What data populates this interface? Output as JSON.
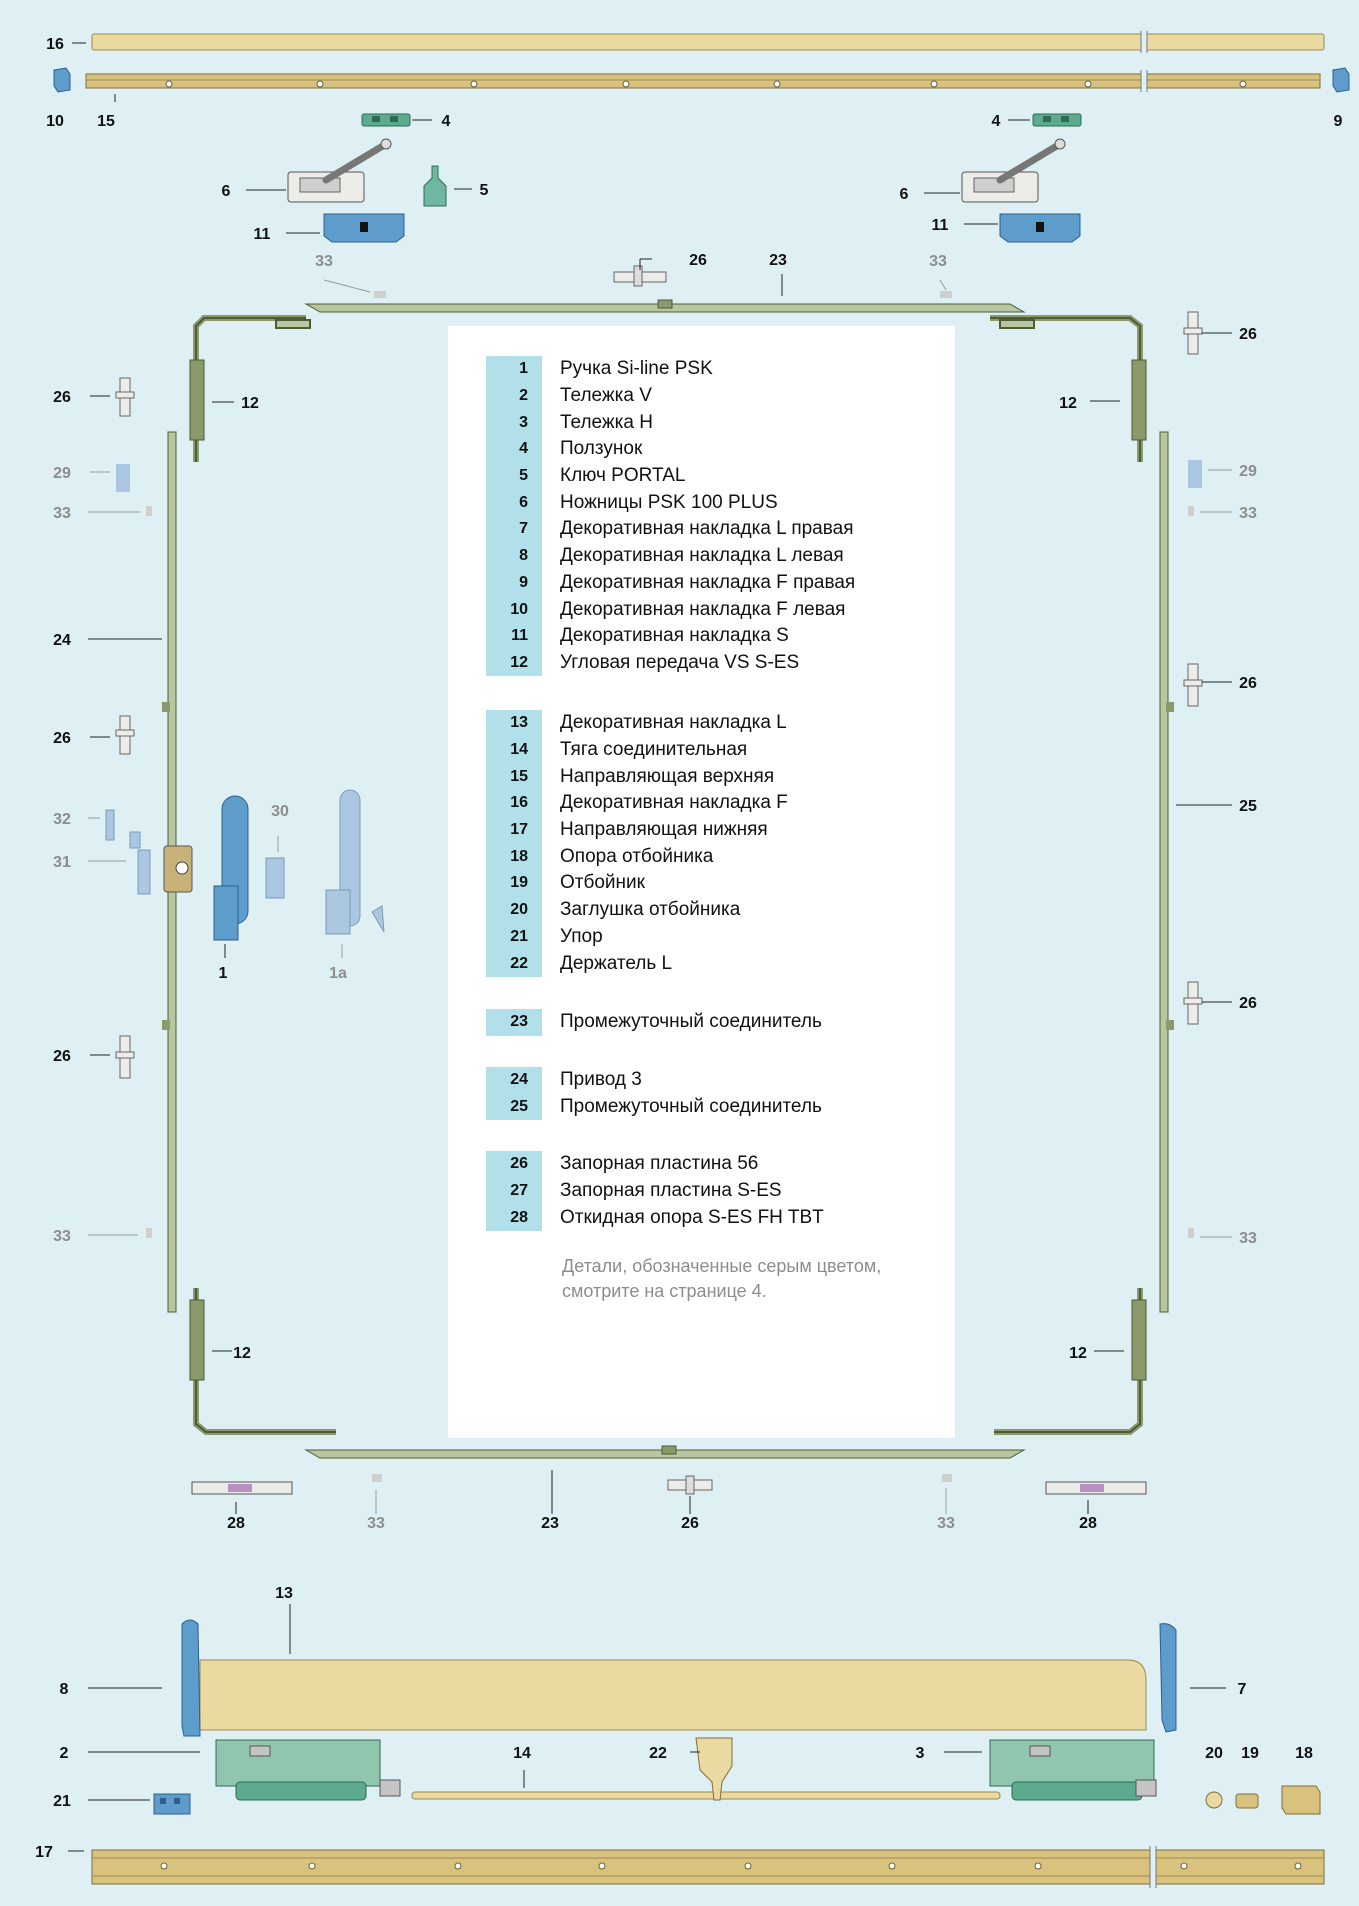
{
  "callouts": [
    {
      "id": "16",
      "text": "16",
      "gray": false
    },
    {
      "id": "10",
      "text": "10",
      "gray": false
    },
    {
      "id": "15",
      "text": "15",
      "gray": false
    },
    {
      "id": "9",
      "text": "9",
      "gray": false
    },
    {
      "id": "4a",
      "text": "4",
      "gray": false
    },
    {
      "id": "4b",
      "text": "4",
      "gray": false
    },
    {
      "id": "6a",
      "text": "6",
      "gray": false
    },
    {
      "id": "5",
      "text": "5",
      "gray": false
    },
    {
      "id": "6b",
      "text": "6",
      "gray": false
    },
    {
      "id": "11a",
      "text": "11",
      "gray": false
    },
    {
      "id": "11b",
      "text": "11",
      "gray": false
    },
    {
      "id": "33a",
      "text": "33",
      "gray": true
    },
    {
      "id": "26top",
      "text": "26",
      "gray": false
    },
    {
      "id": "23top",
      "text": "23",
      "gray": false
    },
    {
      "id": "33b",
      "text": "33",
      "gray": true
    },
    {
      "id": "26r1",
      "text": "26",
      "gray": false
    },
    {
      "id": "26l1",
      "text": "26",
      "gray": false
    },
    {
      "id": "12lt",
      "text": "12",
      "gray": false
    },
    {
      "id": "12rt",
      "text": "12",
      "gray": false
    },
    {
      "id": "29l",
      "text": "29",
      "gray": true
    },
    {
      "id": "29r",
      "text": "29",
      "gray": true
    },
    {
      "id": "33l1",
      "text": "33",
      "gray": true
    },
    {
      "id": "33r1",
      "text": "33",
      "gray": true
    },
    {
      "id": "24",
      "text": "24",
      "gray": false
    },
    {
      "id": "26r2",
      "text": "26",
      "gray": false
    },
    {
      "id": "26l2",
      "text": "26",
      "gray": false
    },
    {
      "id": "25",
      "text": "25",
      "gray": false
    },
    {
      "id": "32",
      "text": "32",
      "gray": true
    },
    {
      "id": "30",
      "text": "30",
      "gray": true
    },
    {
      "id": "31",
      "text": "31",
      "gray": true
    },
    {
      "id": "1",
      "text": "1",
      "gray": false
    },
    {
      "id": "1a",
      "text": "1a",
      "gray": true
    },
    {
      "id": "26r3",
      "text": "26",
      "gray": false
    },
    {
      "id": "26l3",
      "text": "26",
      "gray": false
    },
    {
      "id": "33l2",
      "text": "33",
      "gray": true
    },
    {
      "id": "33r2",
      "text": "33",
      "gray": true
    },
    {
      "id": "12lb",
      "text": "12",
      "gray": false
    },
    {
      "id": "12rb",
      "text": "12",
      "gray": false
    },
    {
      "id": "28a",
      "text": "28",
      "gray": false
    },
    {
      "id": "33c",
      "text": "33",
      "gray": true
    },
    {
      "id": "23bot",
      "text": "23",
      "gray": false
    },
    {
      "id": "26bot",
      "text": "26",
      "gray": false
    },
    {
      "id": "33d",
      "text": "33",
      "gray": true
    },
    {
      "id": "28b",
      "text": "28",
      "gray": false
    },
    {
      "id": "13",
      "text": "13",
      "gray": false
    },
    {
      "id": "8",
      "text": "8",
      "gray": false
    },
    {
      "id": "7",
      "text": "7",
      "gray": false
    },
    {
      "id": "2",
      "text": "2",
      "gray": false
    },
    {
      "id": "14",
      "text": "14",
      "gray": false
    },
    {
      "id": "22",
      "text": "22",
      "gray": false
    },
    {
      "id": "3",
      "text": "3",
      "gray": false
    },
    {
      "id": "20",
      "text": "20",
      "gray": false
    },
    {
      "id": "19",
      "text": "19",
      "gray": false
    },
    {
      "id": "18",
      "text": "18",
      "gray": false
    },
    {
      "id": "21",
      "text": "21",
      "gray": false
    },
    {
      "id": "17",
      "text": "17",
      "gray": false
    }
  ],
  "legend": {
    "groups": [
      {
        "items": [
          {
            "num": "1",
            "label": "Ручка Si-line PSK"
          },
          {
            "num": "2",
            "label": "Тележка V"
          },
          {
            "num": "3",
            "label": "Тележка H"
          },
          {
            "num": "4",
            "label": "Ползунок"
          },
          {
            "num": "5",
            "label": "Ключ PORTAL"
          },
          {
            "num": "6",
            "label": "Ножницы PSK 100 PLUS"
          },
          {
            "num": "7",
            "label": "Декоративная накладка L правая"
          },
          {
            "num": "8",
            "label": "Декоративная накладка L левая"
          },
          {
            "num": "9",
            "label": "Декоративная накладка F правая"
          },
          {
            "num": "10",
            "label": "Декоративная накладка F левая"
          },
          {
            "num": "11",
            "label": "Декоративная накладка S"
          },
          {
            "num": "12",
            "label": "Угловая передача VS S-ES"
          }
        ]
      },
      {
        "items": [
          {
            "num": "13",
            "label": "Декоративная накладка L"
          },
          {
            "num": "14",
            "label": "Тяга соединительная"
          },
          {
            "num": "15",
            "label": "Направляющая верхняя"
          },
          {
            "num": "16",
            "label": "Декоративная накладка F"
          },
          {
            "num": "17",
            "label": "Направляющая нижняя"
          },
          {
            "num": "18",
            "label": "Опора отбойника"
          },
          {
            "num": "19",
            "label": "Отбойник"
          },
          {
            "num": "20",
            "label": "Заглушка отбойника"
          },
          {
            "num": "21",
            "label": "Упор"
          },
          {
            "num": "22",
            "label": "Держатель L"
          }
        ]
      },
      {
        "items": [
          {
            "num": "23",
            "label": "Промежуточный соединитель"
          }
        ]
      },
      {
        "items": [
          {
            "num": "24",
            "label": "Привод 3"
          },
          {
            "num": "25",
            "label": "Промежуточный соединитель"
          }
        ]
      },
      {
        "items": [
          {
            "num": "26",
            "label": "Запорная пластина 56"
          },
          {
            "num": "27",
            "label": "Запорная пластина S-ES"
          },
          {
            "num": "28",
            "label": "Откидная опора S-ES FH TBT"
          }
        ]
      }
    ],
    "note": "Детали, обозначенные серым цветом,\nсмотрите на странице 4."
  },
  "colors": {
    "background": "#dff0f5",
    "legend_panel": "#ffffff",
    "legend_number_band": "#b2e0ea",
    "cover_strip": "#ead9a0",
    "track_rail": "#d8c27e",
    "steel": "#8a9a6a",
    "blue_part": "#5e9ccc",
    "green_part": "#5cab8e",
    "gray_text": "#8d8d8d"
  }
}
